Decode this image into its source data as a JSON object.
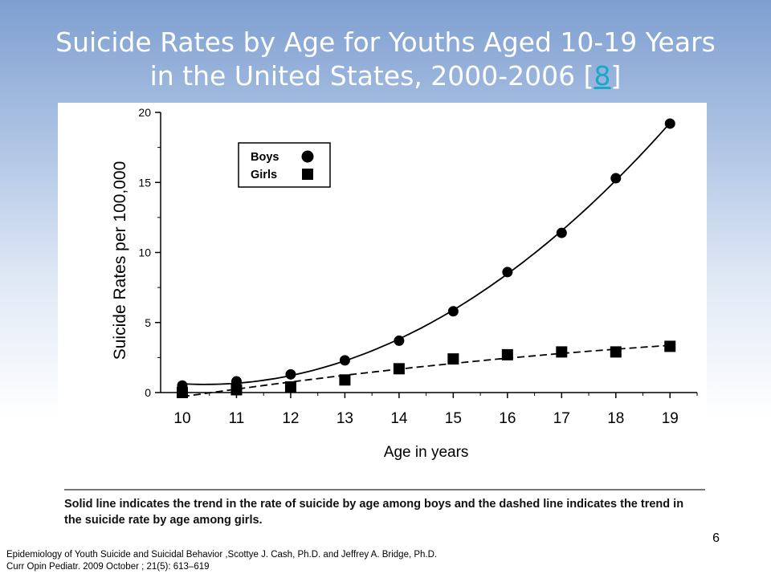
{
  "slide": {
    "title_line1": "Suicide Rates by Age for Youths Aged 10-19 Years",
    "title_line2_pre": "in the United States, 2000-2006 [",
    "title_ref": "8",
    "title_line2_post": "]",
    "caption": "Solid line indicates the trend in the rate of suicide by age among boys and the dashed line indicates the trend in the suicide rate by age among girls.",
    "slide_number": "6",
    "citation_line1": "Epidemiology of Youth Suicide and Suicidal Behavior ,Scottye J. Cash, Ph.D. and Jeffrey A. Bridge, Ph.D.",
    "citation_line2": "Curr Opin Pediatr. 2009 October ; 21(5): 613–619"
  },
  "colors": {
    "title": "#ffffff",
    "link": "#1aa7c9",
    "ink": "#000000"
  },
  "chart_data": {
    "type": "scatter",
    "xlabel": "Age in years",
    "ylabel": "Suicide Rates per 100,000",
    "x": [
      10,
      11,
      12,
      13,
      14,
      15,
      16,
      17,
      18,
      19
    ],
    "xlim": [
      9.6,
      19.5
    ],
    "ylim": [
      0,
      20
    ],
    "yticks": [
      0,
      5,
      10,
      15,
      20
    ],
    "grid": false,
    "legend_position": "top-left",
    "series": [
      {
        "name": "Boys",
        "marker": "circle",
        "trend_line": "solid",
        "values": [
          0.5,
          0.8,
          1.3,
          2.3,
          3.7,
          5.8,
          8.6,
          11.4,
          15.3,
          19.2
        ]
      },
      {
        "name": "Girls",
        "marker": "square",
        "trend_line": "dashed",
        "values": [
          0.0,
          0.2,
          0.4,
          0.9,
          1.7,
          2.4,
          2.7,
          2.9,
          2.9,
          3.3
        ]
      }
    ]
  }
}
